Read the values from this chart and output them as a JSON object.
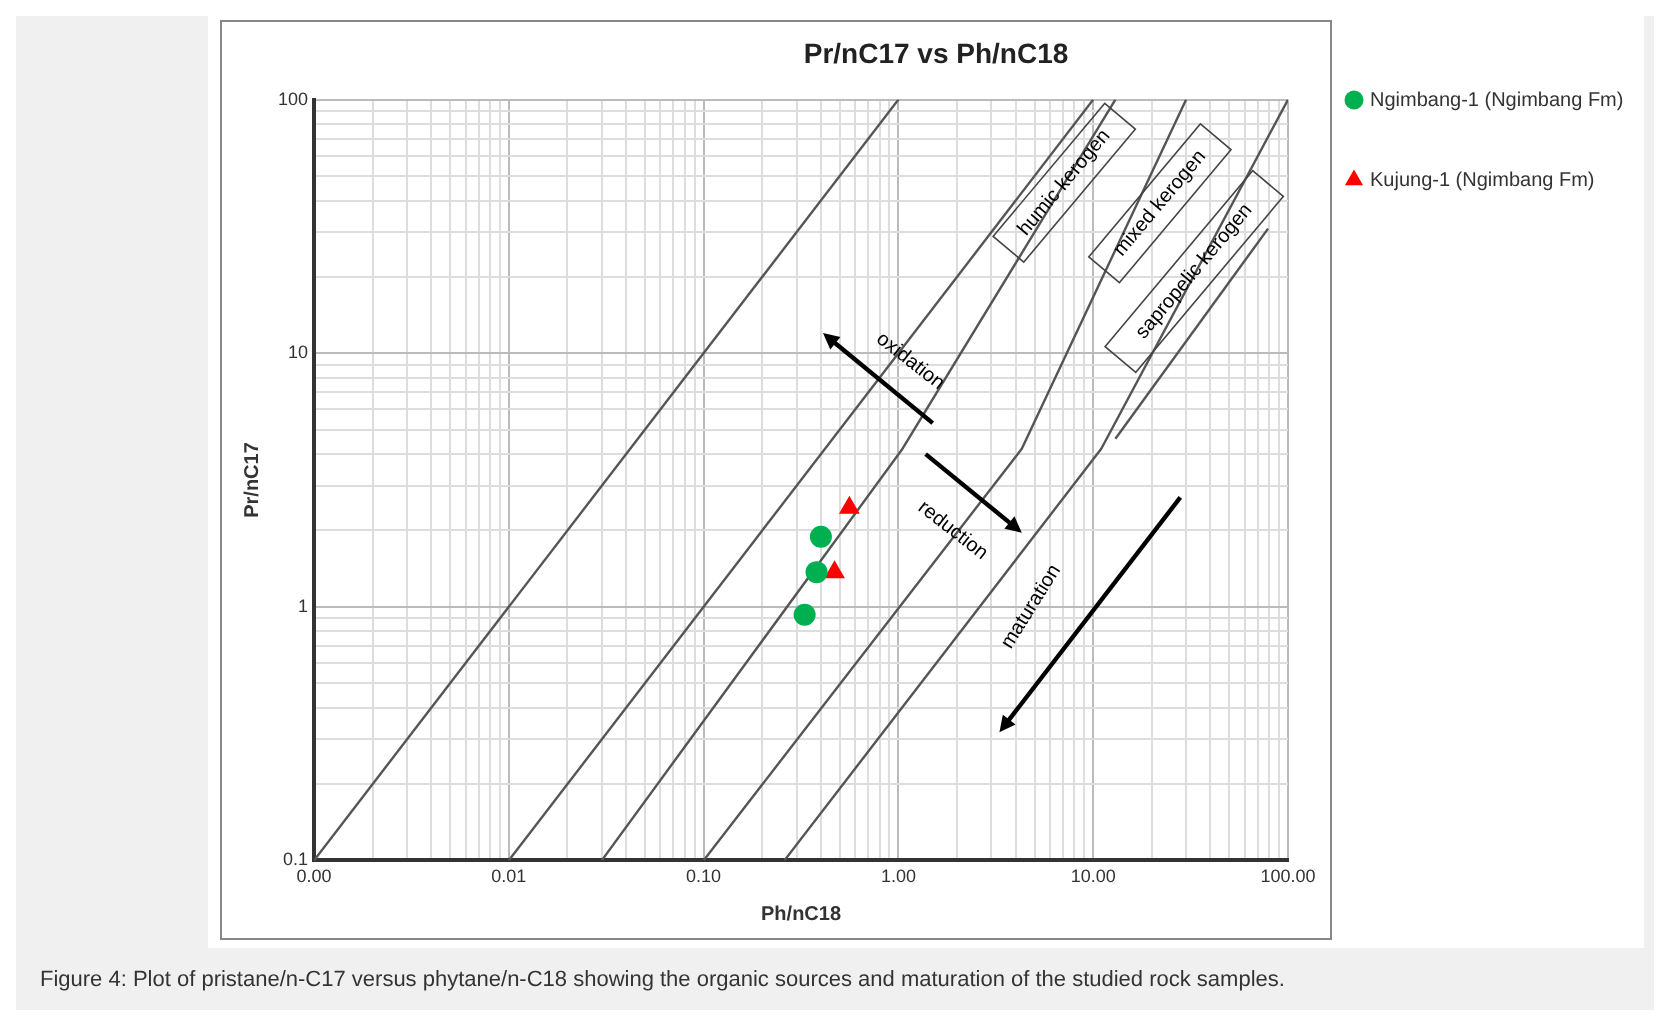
{
  "chart_data": {
    "type": "scatter",
    "title": "Pr/nC17 vs Ph/nC18",
    "xlabel": "Ph/nC18",
    "ylabel": "Pr/nC17",
    "log": "xy",
    "grid": true,
    "legend": "right",
    "xlim": [
      0.001,
      100
    ],
    "ylim": [
      0.1,
      100
    ],
    "xticks": [
      {
        "value": 0.001,
        "label": "0.00"
      },
      {
        "value": 0.002,
        "label": null
      },
      {
        "value": 0.003,
        "label": null
      },
      {
        "value": 0.004,
        "label": null
      },
      {
        "value": 0.005,
        "label": null
      },
      {
        "value": 0.006,
        "label": null
      },
      {
        "value": 0.007,
        "label": null
      },
      {
        "value": 0.008,
        "label": null
      },
      {
        "value": 0.009,
        "label": null
      },
      {
        "value": 0.01,
        "label": "0.01"
      },
      {
        "value": 0.02,
        "label": null
      },
      {
        "value": 0.03,
        "label": null
      },
      {
        "value": 0.04,
        "label": null
      },
      {
        "value": 0.05,
        "label": null
      },
      {
        "value": 0.06,
        "label": null
      },
      {
        "value": 0.07,
        "label": null
      },
      {
        "value": 0.08,
        "label": null
      },
      {
        "value": 0.09,
        "label": null
      },
      {
        "value": 0.1,
        "label": "0.10"
      },
      {
        "value": 0.2,
        "label": null
      },
      {
        "value": 0.3,
        "label": null
      },
      {
        "value": 0.4,
        "label": null
      },
      {
        "value": 0.5,
        "label": null
      },
      {
        "value": 0.6,
        "label": null
      },
      {
        "value": 0.7,
        "label": null
      },
      {
        "value": 0.8,
        "label": null
      },
      {
        "value": 0.9,
        "label": null
      },
      {
        "value": 1,
        "label": "1.00"
      },
      {
        "value": 2,
        "label": null
      },
      {
        "value": 3,
        "label": null
      },
      {
        "value": 4,
        "label": null
      },
      {
        "value": 5,
        "label": null
      },
      {
        "value": 6,
        "label": null
      },
      {
        "value": 7,
        "label": null
      },
      {
        "value": 8,
        "label": null
      },
      {
        "value": 9,
        "label": null
      },
      {
        "value": 10,
        "label": "10.00"
      },
      {
        "value": 20,
        "label": null
      },
      {
        "value": 30,
        "label": null
      },
      {
        "value": 40,
        "label": null
      },
      {
        "value": 50,
        "label": null
      },
      {
        "value": 60,
        "label": null
      },
      {
        "value": 70,
        "label": null
      },
      {
        "value": 80,
        "label": null
      },
      {
        "value": 90,
        "label": null
      },
      {
        "value": 100,
        "label": "100.00"
      }
    ],
    "yticks": [
      0.1,
      {
        "value": 0.2,
        "label": null
      },
      {
        "value": 0.3,
        "label": null
      },
      {
        "value": 0.4,
        "label": null
      },
      {
        "value": 0.5,
        "label": null
      },
      {
        "value": 0.6,
        "label": null
      },
      {
        "value": 0.7,
        "label": null
      },
      {
        "value": 0.8,
        "label": null
      },
      {
        "value": 0.9,
        "label": null
      },
      1,
      {
        "value": 2,
        "label": null
      },
      {
        "value": 3,
        "label": null
      },
      {
        "value": 4,
        "label": null
      },
      {
        "value": 5,
        "label": null
      },
      {
        "value": 6,
        "label": null
      },
      {
        "value": 7,
        "label": null
      },
      {
        "value": 8,
        "label": null
      },
      {
        "value": 9,
        "label": null
      },
      10,
      {
        "value": 20,
        "label": null
      },
      {
        "value": 30,
        "label": null
      },
      {
        "value": 40,
        "label": null
      },
      {
        "value": 50,
        "label": null
      },
      {
        "value": 60,
        "label": null
      },
      {
        "value": 70,
        "label": null
      },
      {
        "value": 80,
        "label": null
      },
      {
        "value": 90,
        "label": null
      },
      100
    ],
    "series": [
      {
        "name": "Ngimbang-1 (Ngimbang Fm)",
        "color": "#00b050",
        "marker": "circle",
        "x": [
          0.4,
          0.38,
          0.33
        ],
        "values": [
          1.89,
          1.37,
          0.93
        ]
      },
      {
        "name": "Kujung-1 (Ngimbang Fm)",
        "color": "#ff0000",
        "marker": "triangle",
        "x": [
          0.56,
          0.47
        ],
        "values": [
          2.46,
          1.37
        ]
      },
      {
        "type": "line",
        "color": "#555555",
        "marker": "none",
        "x": [
          0.001,
          1
        ],
        "values": [
          0.1,
          100
        ]
      },
      {
        "type": "line",
        "color": "#555555",
        "marker": "none",
        "x": [
          0.01,
          10
        ],
        "values": [
          0.1,
          100
        ]
      },
      {
        "type": "line",
        "color": "#555555",
        "marker": "none",
        "x": [
          0.03,
          1.05,
          13
        ],
        "values": [
          0.1,
          4.2,
          100
        ]
      },
      {
        "type": "line",
        "color": "#555555",
        "marker": "none",
        "x": [
          0.1,
          4.3,
          30
        ],
        "values": [
          0.1,
          4.2,
          100
        ]
      },
      {
        "type": "line",
        "color": "#555555",
        "marker": "none",
        "x": [
          0.26,
          11,
          100
        ],
        "values": [
          0.1,
          4.2,
          100
        ]
      },
      {
        "type": "line",
        "color": "#555555",
        "marker": "none",
        "x": [
          13,
          79
        ],
        "values": [
          4.6,
          31
        ]
      }
    ],
    "annotations": [
      "humic kerogen",
      "mixed kerogen",
      "sapropelic kerogen",
      "oxidation",
      "reduction",
      "maturation",
      "Figure 4: Plot of pristane/n-C17 versus phytane/n-C18 showing the organic sources and maturation of the studied rock samples."
    ]
  }
}
